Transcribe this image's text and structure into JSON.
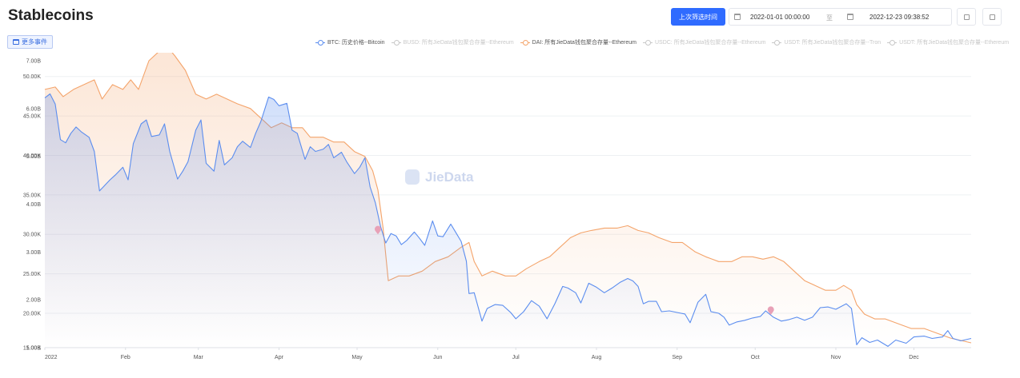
{
  "title": "Stablecoins",
  "events_button_label": "更多事件",
  "last_filter_label": "上次筛选时间",
  "date_from": "2022-01-01 00:00:00",
  "date_separator": "至",
  "date_to": "2022-12-23 09:38:52",
  "watermark": "JieData",
  "colors": {
    "btc": "#5b8def",
    "dai": "#f4a46b",
    "marker": "#e8a1b7",
    "accent": "#2f6bff"
  },
  "legend": [
    {
      "label": "BTC: 历史价格--Bitcoin",
      "active": true,
      "color": "#5b8def"
    },
    {
      "label": "BUSD: 所有JieData钱包聚合存量--Ethereum",
      "active": false,
      "color": "#c8c8c8"
    },
    {
      "label": "DAI: 所有JieData钱包聚合存量--Ethereum",
      "active": true,
      "color": "#f4a46b"
    },
    {
      "label": "USDC: 所有JieData钱包聚合存量--Ethereum",
      "active": false,
      "color": "#c8c8c8"
    },
    {
      "label": "USDT: 所有JieData钱包聚合存量--Tron",
      "active": false,
      "color": "#c8c8c8"
    },
    {
      "label": "USDT: 所有JieData钱包聚合存量--Ethereum",
      "active": false,
      "color": "#c8c8c8"
    }
  ],
  "chart_data": {
    "type": "line",
    "x_ticks": [
      "2022",
      "Feb",
      "Mar",
      "Apr",
      "May",
      "Jun",
      "Jul",
      "Aug",
      "Sep",
      "Oct",
      "Nov",
      "Dec"
    ],
    "y_ticks_btc": [
      "50.00K",
      "45.00K",
      "40.00K",
      "35.00K",
      "30.00K",
      "25.00K",
      "20.00K",
      "15.00K"
    ],
    "y_ticks_dai": [
      "7.00B",
      "6.00B",
      "5.00B",
      "4.00B",
      "3.00B",
      "2.00B",
      "1.00B"
    ],
    "y_range_btc": [
      15640,
      52000
    ],
    "y_range_dai": [
      1.0,
      7.0
    ],
    "grid": true,
    "legend_position": "top-right",
    "events": [
      {
        "date": "2022-05-09",
        "btc_value": 30500
      },
      {
        "date": "2022-10-07",
        "btc_value": 20300
      }
    ],
    "series": [
      {
        "name": "BTC: 历史价格--Bitcoin",
        "color": "#5b8def",
        "points": [
          [
            "2022-01-01",
            47300
          ],
          [
            "2022-01-03",
            47800
          ],
          [
            "2022-01-05",
            46500
          ],
          [
            "2022-01-07",
            42000
          ],
          [
            "2022-01-09",
            41600
          ],
          [
            "2022-01-11",
            42800
          ],
          [
            "2022-01-13",
            43600
          ],
          [
            "2022-01-15",
            43000
          ],
          [
            "2022-01-18",
            42300
          ],
          [
            "2022-01-20",
            40500
          ],
          [
            "2022-01-22",
            35500
          ],
          [
            "2022-01-24",
            36200
          ],
          [
            "2022-01-26",
            36900
          ],
          [
            "2022-01-28",
            37500
          ],
          [
            "2022-01-31",
            38500
          ],
          [
            "2022-02-02",
            36900
          ],
          [
            "2022-02-04",
            41500
          ],
          [
            "2022-02-07",
            44000
          ],
          [
            "2022-02-09",
            44500
          ],
          [
            "2022-02-11",
            42400
          ],
          [
            "2022-02-14",
            42600
          ],
          [
            "2022-02-16",
            44000
          ],
          [
            "2022-02-18",
            40500
          ],
          [
            "2022-02-21",
            37000
          ],
          [
            "2022-02-23",
            38000
          ],
          [
            "2022-02-25",
            39200
          ],
          [
            "2022-02-28",
            43200
          ],
          [
            "2022-03-02",
            44500
          ],
          [
            "2022-03-04",
            39000
          ],
          [
            "2022-03-07",
            38000
          ],
          [
            "2022-03-09",
            41900
          ],
          [
            "2022-03-11",
            38800
          ],
          [
            "2022-03-14",
            39700
          ],
          [
            "2022-03-16",
            41100
          ],
          [
            "2022-03-18",
            41800
          ],
          [
            "2022-03-21",
            41000
          ],
          [
            "2022-03-23",
            42800
          ],
          [
            "2022-03-25",
            44300
          ],
          [
            "2022-03-28",
            47400
          ],
          [
            "2022-03-30",
            47100
          ],
          [
            "2022-04-01",
            46300
          ],
          [
            "2022-04-04",
            46600
          ],
          [
            "2022-04-06",
            43200
          ],
          [
            "2022-04-08",
            42800
          ],
          [
            "2022-04-11",
            39500
          ],
          [
            "2022-04-13",
            41100
          ],
          [
            "2022-04-15",
            40500
          ],
          [
            "2022-04-18",
            40800
          ],
          [
            "2022-04-20",
            41400
          ],
          [
            "2022-04-22",
            39700
          ],
          [
            "2022-04-25",
            40400
          ],
          [
            "2022-04-27",
            39200
          ],
          [
            "2022-04-30",
            37700
          ],
          [
            "2022-05-02",
            38500
          ],
          [
            "2022-05-04",
            39700
          ],
          [
            "2022-05-06",
            36000
          ],
          [
            "2022-05-08",
            34000
          ],
          [
            "2022-05-10",
            31000
          ],
          [
            "2022-05-12",
            28900
          ],
          [
            "2022-05-14",
            30100
          ],
          [
            "2022-05-16",
            29800
          ],
          [
            "2022-05-18",
            28700
          ],
          [
            "2022-05-20",
            29200
          ],
          [
            "2022-05-23",
            30300
          ],
          [
            "2022-05-25",
            29500
          ],
          [
            "2022-05-27",
            28600
          ],
          [
            "2022-05-30",
            31700
          ],
          [
            "2022-06-01",
            29800
          ],
          [
            "2022-06-03",
            29700
          ],
          [
            "2022-06-06",
            31300
          ],
          [
            "2022-06-08",
            30200
          ],
          [
            "2022-06-10",
            29100
          ],
          [
            "2022-06-12",
            26600
          ],
          [
            "2022-06-13",
            22500
          ],
          [
            "2022-06-15",
            22600
          ],
          [
            "2022-06-18",
            19000
          ],
          [
            "2022-06-20",
            20600
          ],
          [
            "2022-06-23",
            21100
          ],
          [
            "2022-06-26",
            21000
          ],
          [
            "2022-06-29",
            20100
          ],
          [
            "2022-07-01",
            19300
          ],
          [
            "2022-07-04",
            20200
          ],
          [
            "2022-07-07",
            21600
          ],
          [
            "2022-07-10",
            20900
          ],
          [
            "2022-07-13",
            19300
          ],
          [
            "2022-07-16",
            21200
          ],
          [
            "2022-07-19",
            23400
          ],
          [
            "2022-07-21",
            23200
          ],
          [
            "2022-07-24",
            22600
          ],
          [
            "2022-07-26",
            21300
          ],
          [
            "2022-07-29",
            23800
          ],
          [
            "2022-08-01",
            23300
          ],
          [
            "2022-08-04",
            22600
          ],
          [
            "2022-08-07",
            23200
          ],
          [
            "2022-08-10",
            23900
          ],
          [
            "2022-08-13",
            24400
          ],
          [
            "2022-08-15",
            24100
          ],
          [
            "2022-08-17",
            23400
          ],
          [
            "2022-08-19",
            21200
          ],
          [
            "2022-08-21",
            21500
          ],
          [
            "2022-08-24",
            21500
          ],
          [
            "2022-08-26",
            20200
          ],
          [
            "2022-08-29",
            20300
          ],
          [
            "2022-09-01",
            20100
          ],
          [
            "2022-09-04",
            19900
          ],
          [
            "2022-09-06",
            18800
          ],
          [
            "2022-09-09",
            21400
          ],
          [
            "2022-09-12",
            22400
          ],
          [
            "2022-09-14",
            20200
          ],
          [
            "2022-09-17",
            20000
          ],
          [
            "2022-09-19",
            19500
          ],
          [
            "2022-09-21",
            18500
          ],
          [
            "2022-09-24",
            18900
          ],
          [
            "2022-09-27",
            19100
          ],
          [
            "2022-09-30",
            19400
          ],
          [
            "2022-10-03",
            19600
          ],
          [
            "2022-10-05",
            20300
          ],
          [
            "2022-10-08",
            19500
          ],
          [
            "2022-10-11",
            19000
          ],
          [
            "2022-10-14",
            19200
          ],
          [
            "2022-10-17",
            19500
          ],
          [
            "2022-10-20",
            19100
          ],
          [
            "2022-10-23",
            19500
          ],
          [
            "2022-10-26",
            20700
          ],
          [
            "2022-10-29",
            20800
          ],
          [
            "2022-11-01",
            20500
          ],
          [
            "2022-11-05",
            21200
          ],
          [
            "2022-11-07",
            20600
          ],
          [
            "2022-11-09",
            16000
          ],
          [
            "2022-11-11",
            16900
          ],
          [
            "2022-11-14",
            16300
          ],
          [
            "2022-11-17",
            16600
          ],
          [
            "2022-11-21",
            15800
          ],
          [
            "2022-11-24",
            16600
          ],
          [
            "2022-11-28",
            16200
          ],
          [
            "2022-12-01",
            17000
          ],
          [
            "2022-12-05",
            17100
          ],
          [
            "2022-12-08",
            16800
          ],
          [
            "2022-12-12",
            17000
          ],
          [
            "2022-12-14",
            17800
          ],
          [
            "2022-12-16",
            16800
          ],
          [
            "2022-12-19",
            16500
          ],
          [
            "2022-12-23",
            16800
          ]
        ]
      },
      {
        "name": "DAI: 所有JieData钱包聚合存量--Ethereum",
        "color": "#f4a46b",
        "points": [
          [
            "2022-01-01",
            6.4
          ],
          [
            "2022-01-05",
            6.45
          ],
          [
            "2022-01-08",
            6.25
          ],
          [
            "2022-01-12",
            6.4
          ],
          [
            "2022-01-16",
            6.5
          ],
          [
            "2022-01-20",
            6.6
          ],
          [
            "2022-01-23",
            6.2
          ],
          [
            "2022-01-27",
            6.5
          ],
          [
            "2022-01-31",
            6.4
          ],
          [
            "2022-02-03",
            6.6
          ],
          [
            "2022-02-06",
            6.4
          ],
          [
            "2022-02-10",
            7.0
          ],
          [
            "2022-02-14",
            7.2
          ],
          [
            "2022-02-17",
            7.3
          ],
          [
            "2022-02-20",
            7.1
          ],
          [
            "2022-02-24",
            6.8
          ],
          [
            "2022-02-28",
            6.3
          ],
          [
            "2022-03-04",
            6.2
          ],
          [
            "2022-03-08",
            6.3
          ],
          [
            "2022-03-12",
            6.2
          ],
          [
            "2022-03-16",
            6.1
          ],
          [
            "2022-03-21",
            6.0
          ],
          [
            "2022-03-25",
            5.8
          ],
          [
            "2022-03-29",
            5.6
          ],
          [
            "2022-04-02",
            5.7
          ],
          [
            "2022-04-06",
            5.6
          ],
          [
            "2022-04-10",
            5.6
          ],
          [
            "2022-04-13",
            5.4
          ],
          [
            "2022-04-18",
            5.4
          ],
          [
            "2022-04-22",
            5.3
          ],
          [
            "2022-04-26",
            5.3
          ],
          [
            "2022-04-30",
            5.1
          ],
          [
            "2022-05-04",
            5.0
          ],
          [
            "2022-05-07",
            4.7
          ],
          [
            "2022-05-09",
            4.3
          ],
          [
            "2022-05-11",
            3.5
          ],
          [
            "2022-05-13",
            2.4
          ],
          [
            "2022-05-17",
            2.5
          ],
          [
            "2022-05-21",
            2.5
          ],
          [
            "2022-05-26",
            2.6
          ],
          [
            "2022-05-31",
            2.8
          ],
          [
            "2022-06-05",
            2.9
          ],
          [
            "2022-06-10",
            3.1
          ],
          [
            "2022-06-13",
            3.2
          ],
          [
            "2022-06-15",
            2.8
          ],
          [
            "2022-06-18",
            2.5
          ],
          [
            "2022-06-22",
            2.6
          ],
          [
            "2022-06-27",
            2.5
          ],
          [
            "2022-07-01",
            2.5
          ],
          [
            "2022-07-05",
            2.65
          ],
          [
            "2022-07-10",
            2.8
          ],
          [
            "2022-07-14",
            2.9
          ],
          [
            "2022-07-18",
            3.1
          ],
          [
            "2022-07-22",
            3.3
          ],
          [
            "2022-07-26",
            3.4
          ],
          [
            "2022-07-30",
            3.45
          ],
          [
            "2022-08-04",
            3.5
          ],
          [
            "2022-08-09",
            3.5
          ],
          [
            "2022-08-13",
            3.55
          ],
          [
            "2022-08-17",
            3.45
          ],
          [
            "2022-08-21",
            3.4
          ],
          [
            "2022-08-25",
            3.3
          ],
          [
            "2022-08-30",
            3.2
          ],
          [
            "2022-09-03",
            3.2
          ],
          [
            "2022-09-08",
            3.0
          ],
          [
            "2022-09-12",
            2.9
          ],
          [
            "2022-09-17",
            2.8
          ],
          [
            "2022-09-22",
            2.8
          ],
          [
            "2022-09-26",
            2.9
          ],
          [
            "2022-09-30",
            2.9
          ],
          [
            "2022-10-04",
            2.85
          ],
          [
            "2022-10-08",
            2.9
          ],
          [
            "2022-10-12",
            2.8
          ],
          [
            "2022-10-16",
            2.6
          ],
          [
            "2022-10-20",
            2.4
          ],
          [
            "2022-10-24",
            2.3
          ],
          [
            "2022-10-28",
            2.2
          ],
          [
            "2022-11-01",
            2.2
          ],
          [
            "2022-11-04",
            2.3
          ],
          [
            "2022-11-07",
            2.2
          ],
          [
            "2022-11-09",
            1.9
          ],
          [
            "2022-11-12",
            1.7
          ],
          [
            "2022-11-16",
            1.6
          ],
          [
            "2022-11-20",
            1.6
          ],
          [
            "2022-11-25",
            1.5
          ],
          [
            "2022-11-30",
            1.4
          ],
          [
            "2022-12-05",
            1.4
          ],
          [
            "2022-12-10",
            1.3
          ],
          [
            "2022-12-15",
            1.2
          ],
          [
            "2022-12-19",
            1.15
          ],
          [
            "2022-12-23",
            1.1
          ]
        ]
      }
    ]
  }
}
